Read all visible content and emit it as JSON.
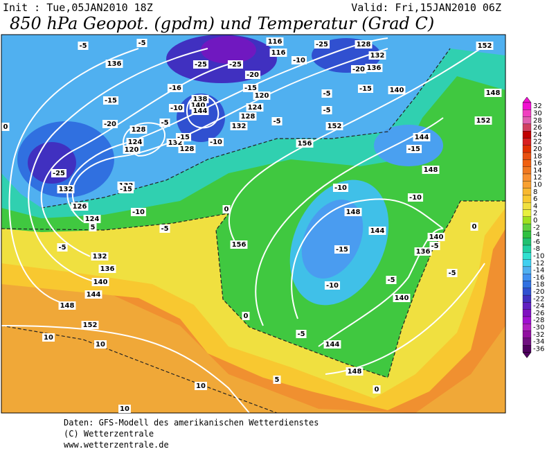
{
  "header": {
    "init": "Init : Tue,05JAN2010 18Z",
    "valid": "Valid: Fri,15JAN2010 06Z",
    "title": "850 hPa Geopot. (gpdm) und Temperatur (Grad C)"
  },
  "map": {
    "contour_labels": [
      136,
      138,
      140,
      144,
      116,
      116,
      128,
      132,
      136,
      140,
      152,
      148,
      152,
      120,
      124,
      128,
      132,
      128,
      124,
      120,
      132,
      128,
      156,
      152,
      144,
      148,
      132,
      132,
      126,
      124,
      132,
      136,
      140,
      144,
      148,
      152,
      156,
      148,
      144,
      140,
      136,
      140,
      144,
      148,
      -5,
      -5,
      -25,
      -25,
      -20,
      -15,
      -10,
      -25,
      -20,
      -15,
      -16,
      -15,
      -10,
      -5,
      -20,
      -5,
      -5,
      -5,
      -10,
      -15,
      -25,
      -15,
      -10,
      -5,
      -5,
      -10,
      -10,
      -15,
      -15,
      -10,
      -5,
      -5,
      -5,
      -5,
      0,
      0,
      0,
      0,
      10,
      10,
      10,
      10,
      5,
      5,
      0
    ]
  },
  "colorbar": {
    "ticks": [
      32,
      30,
      28,
      26,
      24,
      22,
      20,
      18,
      16,
      14,
      12,
      10,
      8,
      6,
      4,
      2,
      0,
      -2,
      -4,
      -6,
      -8,
      -10,
      -12,
      -14,
      -16,
      -18,
      -20,
      -22,
      -24,
      -26,
      -28,
      -30,
      -32,
      -34,
      -36
    ],
    "colors": [
      "#f010d0",
      "#f040c0",
      "#e060b0",
      "#d04060",
      "#c00000",
      "#d82020",
      "#e03000",
      "#e85010",
      "#f06010",
      "#f07820",
      "#f89030",
      "#f8a030",
      "#f8b830",
      "#f8c830",
      "#f0e040",
      "#e8f040",
      "#a0e020",
      "#60d040",
      "#30c040",
      "#20c070",
      "#20d0a0",
      "#30e0d0",
      "#40d0f0",
      "#50b0f0",
      "#4090f0",
      "#3070e0",
      "#3050d0",
      "#4030c0",
      "#6020c0",
      "#8010c0",
      "#a010d0",
      "#b020c0",
      "#9010a0",
      "#701080",
      "#500060"
    ]
  },
  "footer": {
    "lines": [
      "Daten: GFS-Modell des amerikanischen Wetterdienstes",
      "(C) Wetterzentrale",
      "www.wetterzentrale.de"
    ]
  }
}
